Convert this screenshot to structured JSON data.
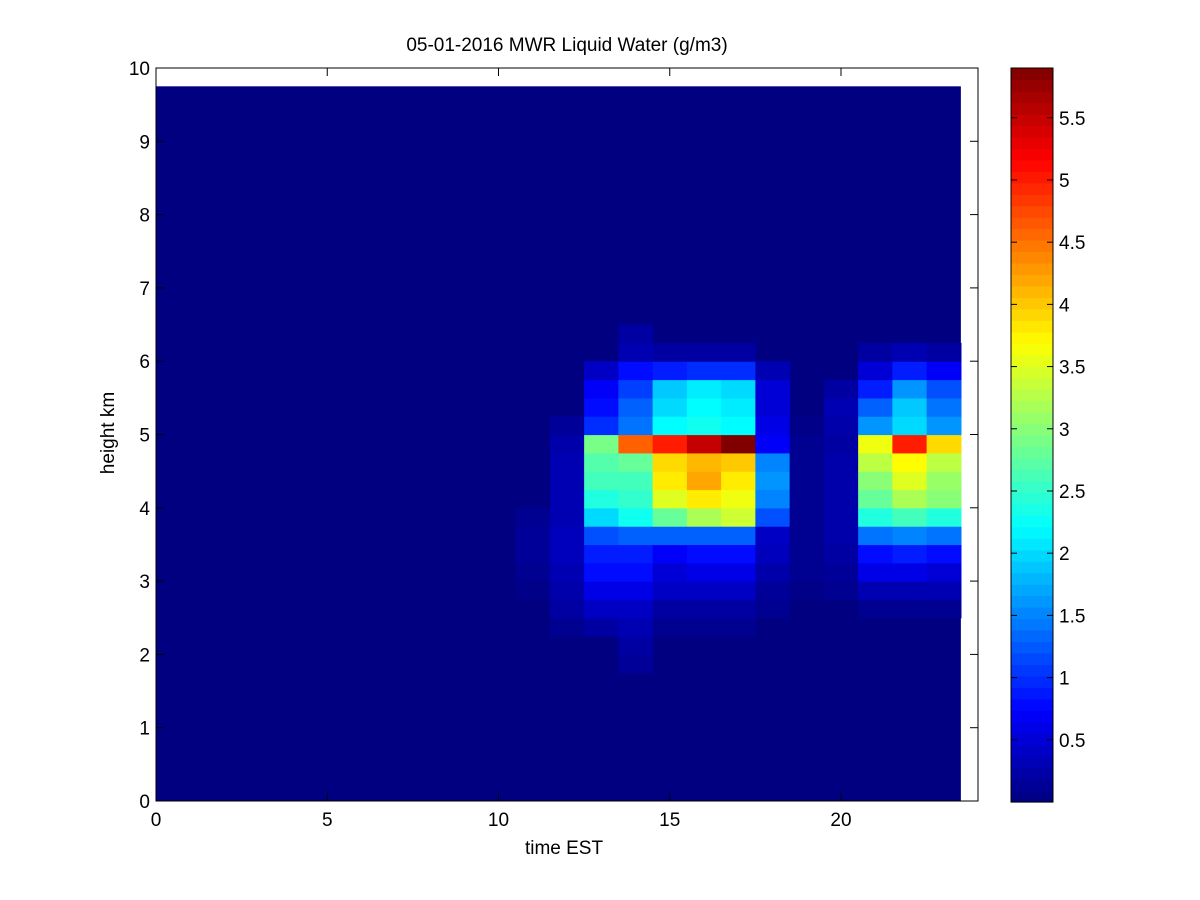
{
  "chart_data": {
    "type": "heatmap",
    "title": "05-01-2016 MWR Liquid Water (g/m3)",
    "xlabel": "time EST",
    "ylabel": "height km",
    "xlim": [
      0,
      24
    ],
    "ylim": [
      0,
      10
    ],
    "xticks": [
      0,
      5,
      10,
      15,
      20
    ],
    "yticks": [
      0,
      1,
      2,
      3,
      4,
      5,
      6,
      7,
      8,
      9,
      10
    ],
    "data_extent": {
      "x": [
        0,
        23.5
      ],
      "y": [
        0,
        9.75
      ]
    },
    "colormap": "jet",
    "clim": [
      0,
      5.9
    ],
    "colorbar_ticks": [
      0.5,
      1,
      1.5,
      2,
      2.5,
      3,
      3.5,
      4,
      4.5,
      5,
      5.5
    ],
    "background_value": 0,
    "cell_height_km": 0.25,
    "time_bins": [
      {
        "start": 10.5,
        "end": 11.5,
        "profile": [
          [
            2.75,
            0.05
          ],
          [
            3.0,
            0.1
          ],
          [
            3.25,
            0.15
          ],
          [
            3.5,
            0.15
          ],
          [
            3.75,
            0.1
          ]
        ]
      },
      {
        "start": 11.5,
        "end": 12.5,
        "profile": [
          [
            2.25,
            0.1
          ],
          [
            2.5,
            0.2
          ],
          [
            2.75,
            0.25
          ],
          [
            3.0,
            0.3
          ],
          [
            3.25,
            0.35
          ],
          [
            3.5,
            0.35
          ],
          [
            3.75,
            0.3
          ],
          [
            4.0,
            0.3
          ],
          [
            4.25,
            0.3
          ],
          [
            4.5,
            0.3
          ],
          [
            4.75,
            0.25
          ],
          [
            5.0,
            0.15
          ]
        ]
      },
      {
        "start": 12.5,
        "end": 13.5,
        "profile": [
          [
            2.25,
            0.2
          ],
          [
            2.5,
            0.4
          ],
          [
            2.75,
            0.6
          ],
          [
            3.0,
            0.8
          ],
          [
            3.25,
            0.9
          ],
          [
            3.5,
            1.2
          ],
          [
            3.75,
            2.0
          ],
          [
            4.0,
            2.4
          ],
          [
            4.25,
            2.6
          ],
          [
            4.5,
            2.7
          ],
          [
            4.75,
            2.9
          ],
          [
            5.0,
            1.0
          ],
          [
            5.25,
            0.8
          ],
          [
            5.5,
            0.7
          ],
          [
            5.75,
            0.4
          ]
        ]
      },
      {
        "start": 13.5,
        "end": 14.5,
        "profile": [
          [
            1.75,
            0.15
          ],
          [
            2.0,
            0.2
          ],
          [
            2.25,
            0.3
          ],
          [
            2.5,
            0.4
          ],
          [
            2.75,
            0.6
          ],
          [
            3.0,
            0.8
          ],
          [
            3.25,
            0.9
          ],
          [
            3.5,
            1.3
          ],
          [
            3.75,
            2.3
          ],
          [
            4.0,
            2.5
          ],
          [
            4.25,
            2.6
          ],
          [
            4.5,
            2.8
          ],
          [
            4.75,
            4.6
          ],
          [
            5.0,
            1.4
          ],
          [
            5.25,
            1.3
          ],
          [
            5.5,
            1.1
          ],
          [
            5.75,
            0.8
          ],
          [
            6.0,
            0.3
          ],
          [
            6.25,
            0.2
          ]
        ]
      },
      {
        "start": 14.5,
        "end": 15.5,
        "profile": [
          [
            2.25,
            0.1
          ],
          [
            2.5,
            0.2
          ],
          [
            2.75,
            0.4
          ],
          [
            3.0,
            0.5
          ],
          [
            3.25,
            0.7
          ],
          [
            3.5,
            1.3
          ],
          [
            3.75,
            2.8
          ],
          [
            4.0,
            3.5
          ],
          [
            4.25,
            3.8
          ],
          [
            4.5,
            3.9
          ],
          [
            4.75,
            5.0
          ],
          [
            5.0,
            2.2
          ],
          [
            5.25,
            2.0
          ],
          [
            5.5,
            1.9
          ],
          [
            5.75,
            0.9
          ],
          [
            6.0,
            0.2
          ]
        ]
      },
      {
        "start": 15.5,
        "end": 16.5,
        "profile": [
          [
            2.25,
            0.1
          ],
          [
            2.5,
            0.2
          ],
          [
            2.75,
            0.4
          ],
          [
            3.0,
            0.6
          ],
          [
            3.25,
            0.8
          ],
          [
            3.5,
            1.3
          ],
          [
            3.75,
            3.2
          ],
          [
            4.0,
            3.8
          ],
          [
            4.25,
            4.2
          ],
          [
            4.5,
            4.1
          ],
          [
            4.75,
            5.5
          ],
          [
            5.0,
            2.3
          ],
          [
            5.25,
            2.2
          ],
          [
            5.5,
            2.1
          ],
          [
            5.75,
            1.0
          ],
          [
            6.0,
            0.2
          ]
        ]
      },
      {
        "start": 16.5,
        "end": 17.5,
        "profile": [
          [
            2.25,
            0.1
          ],
          [
            2.5,
            0.2
          ],
          [
            2.75,
            0.4
          ],
          [
            3.0,
            0.6
          ],
          [
            3.25,
            0.8
          ],
          [
            3.5,
            1.3
          ],
          [
            3.75,
            3.4
          ],
          [
            4.0,
            3.6
          ],
          [
            4.25,
            3.8
          ],
          [
            4.5,
            4.0
          ],
          [
            4.75,
            5.9
          ],
          [
            5.0,
            2.2
          ],
          [
            5.25,
            2.1
          ],
          [
            5.5,
            2.0
          ],
          [
            5.75,
            1.0
          ],
          [
            6.0,
            0.2
          ]
        ]
      },
      {
        "start": 17.5,
        "end": 18.5,
        "profile": [
          [
            2.5,
            0.1
          ],
          [
            2.75,
            0.15
          ],
          [
            3.0,
            0.25
          ],
          [
            3.25,
            0.35
          ],
          [
            3.5,
            0.4
          ],
          [
            3.75,
            1.2
          ],
          [
            4.0,
            1.5
          ],
          [
            4.25,
            1.6
          ],
          [
            4.5,
            1.5
          ],
          [
            4.75,
            0.7
          ],
          [
            5.0,
            0.6
          ],
          [
            5.25,
            0.5
          ],
          [
            5.5,
            0.5
          ],
          [
            5.75,
            0.3
          ]
        ]
      },
      {
        "start": 18.5,
        "end": 19.5,
        "profile": [
          [
            2.75,
            0.05
          ],
          [
            3.0,
            0.1
          ],
          [
            3.25,
            0.1
          ],
          [
            3.5,
            0.1
          ],
          [
            3.75,
            0.1
          ],
          [
            4.0,
            0.1
          ],
          [
            4.25,
            0.1
          ],
          [
            4.5,
            0.1
          ],
          [
            4.75,
            0.1
          ],
          [
            5.0,
            0.05
          ]
        ]
      },
      {
        "start": 19.5,
        "end": 20.5,
        "profile": [
          [
            2.75,
            0.1
          ],
          [
            3.0,
            0.15
          ],
          [
            3.25,
            0.2
          ],
          [
            3.5,
            0.25
          ],
          [
            3.75,
            0.25
          ],
          [
            4.0,
            0.25
          ],
          [
            4.25,
            0.25
          ],
          [
            4.5,
            0.25
          ],
          [
            4.75,
            0.2
          ],
          [
            5.0,
            0.25
          ],
          [
            5.25,
            0.3
          ],
          [
            5.5,
            0.2
          ]
        ]
      },
      {
        "start": 20.5,
        "end": 21.5,
        "profile": [
          [
            2.5,
            0.1
          ],
          [
            2.75,
            0.3
          ],
          [
            3.0,
            0.6
          ],
          [
            3.25,
            0.8
          ],
          [
            3.5,
            1.4
          ],
          [
            3.75,
            2.4
          ],
          [
            4.0,
            2.8
          ],
          [
            4.25,
            3.0
          ],
          [
            4.5,
            3.3
          ],
          [
            4.75,
            3.6
          ],
          [
            5.0,
            1.6
          ],
          [
            5.25,
            1.3
          ],
          [
            5.5,
            0.9
          ],
          [
            5.75,
            0.5
          ],
          [
            6.0,
            0.2
          ]
        ]
      },
      {
        "start": 21.5,
        "end": 22.5,
        "profile": [
          [
            2.5,
            0.1
          ],
          [
            2.75,
            0.3
          ],
          [
            3.0,
            0.6
          ],
          [
            3.25,
            0.9
          ],
          [
            3.5,
            1.5
          ],
          [
            3.75,
            2.6
          ],
          [
            4.0,
            3.2
          ],
          [
            4.25,
            3.5
          ],
          [
            4.5,
            3.7
          ],
          [
            4.75,
            5.0
          ],
          [
            5.0,
            2.0
          ],
          [
            5.25,
            1.9
          ],
          [
            5.5,
            1.6
          ],
          [
            5.75,
            0.9
          ],
          [
            6.0,
            0.3
          ]
        ]
      },
      {
        "start": 22.5,
        "end": 23.5,
        "profile": [
          [
            2.5,
            0.1
          ],
          [
            2.75,
            0.3
          ],
          [
            3.0,
            0.5
          ],
          [
            3.25,
            0.8
          ],
          [
            3.5,
            1.4
          ],
          [
            3.75,
            2.4
          ],
          [
            4.0,
            3.0
          ],
          [
            4.25,
            3.1
          ],
          [
            4.5,
            3.3
          ],
          [
            4.75,
            3.9
          ],
          [
            5.0,
            1.6
          ],
          [
            5.25,
            1.4
          ],
          [
            5.5,
            1.2
          ],
          [
            5.75,
            0.7
          ],
          [
            6.0,
            0.2
          ]
        ]
      }
    ]
  }
}
